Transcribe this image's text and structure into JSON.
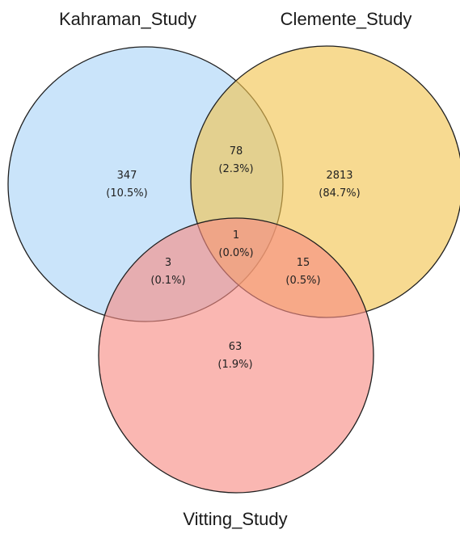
{
  "venn": {
    "sets": [
      {
        "id": "A",
        "name": "Kahraman_Study",
        "color": "#a9d4f7"
      },
      {
        "id": "B",
        "name": "Clemente_Study",
        "color": "#f2c34d"
      },
      {
        "id": "C",
        "name": "Vitting_Study",
        "color": "#f78b83"
      }
    ],
    "regions": [
      {
        "id": "A_only",
        "sets": [
          "A"
        ],
        "count": "347",
        "percent": "(10.5%)"
      },
      {
        "id": "B_only",
        "sets": [
          "B"
        ],
        "count": "2813",
        "percent": "(84.7%)"
      },
      {
        "id": "C_only",
        "sets": [
          "C"
        ],
        "count": "63",
        "percent": "(1.9%)"
      },
      {
        "id": "AB_only",
        "sets": [
          "A",
          "B"
        ],
        "count": "78",
        "percent": "(2.3%)"
      },
      {
        "id": "AC_only",
        "sets": [
          "A",
          "C"
        ],
        "count": "3",
        "percent": "(0.1%)"
      },
      {
        "id": "BC_only",
        "sets": [
          "B",
          "C"
        ],
        "count": "15",
        "percent": "(0.5%)"
      },
      {
        "id": "ABC",
        "sets": [
          "A",
          "B",
          "C"
        ],
        "count": "1",
        "percent": "(0.0%)"
      }
    ]
  }
}
